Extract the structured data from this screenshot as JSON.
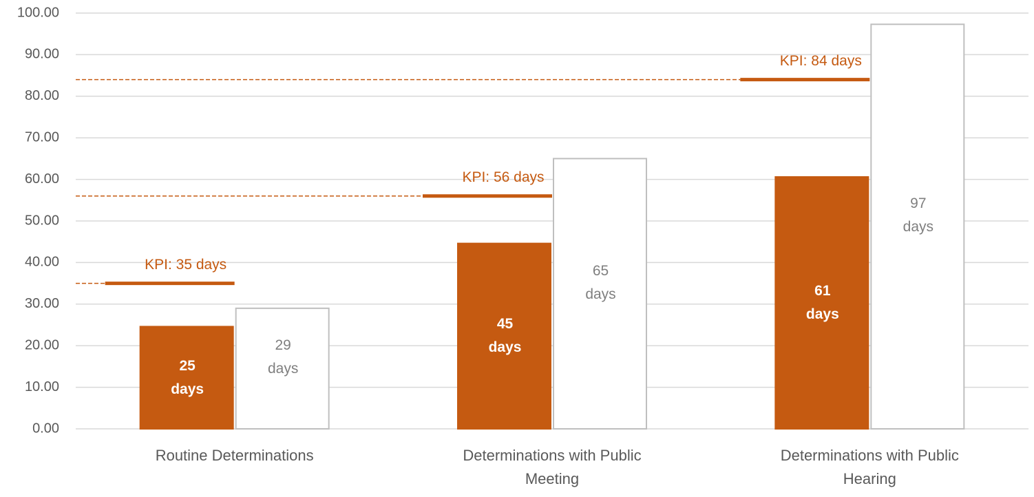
{
  "chart_data": {
    "type": "bar",
    "categories": [
      "Routine Determinations",
      "Determinations with Public Meeting",
      "Determinations with Public Hearing"
    ],
    "series": [
      {
        "color": "#c55a11",
        "values": [
          24.6,
          44.6,
          60.6
        ],
        "value_labels": [
          "25 days",
          "45 days",
          "61 days"
        ]
      },
      {
        "color": "#ffffff",
        "values": [
          29,
          65,
          97.3
        ],
        "value_labels": [
          "29 days",
          "65 days",
          "97 days"
        ]
      }
    ],
    "kpis": [
      {
        "label": "KPI: 35 days",
        "value": 35
      },
      {
        "label": "KPI: 56 days",
        "value": 56
      },
      {
        "label": "KPI: 84 days",
        "value": 84
      }
    ],
    "kpi_color": "#c55a11",
    "ylim": [
      0,
      100
    ],
    "yticks": [
      {
        "value": 0,
        "label": "0.00"
      },
      {
        "value": 10,
        "label": "10.00"
      },
      {
        "value": 20,
        "label": "20.00"
      },
      {
        "value": 30,
        "label": "30.00"
      },
      {
        "value": 40,
        "label": "40.00"
      },
      {
        "value": 50,
        "label": "50.00"
      },
      {
        "value": 60,
        "label": "60.00"
      },
      {
        "value": 70,
        "label": "70.00"
      },
      {
        "value": 80,
        "label": "80.00"
      },
      {
        "value": 90,
        "label": "90.00"
      },
      {
        "value": 100,
        "label": "100.00"
      }
    ],
    "grid": true
  }
}
